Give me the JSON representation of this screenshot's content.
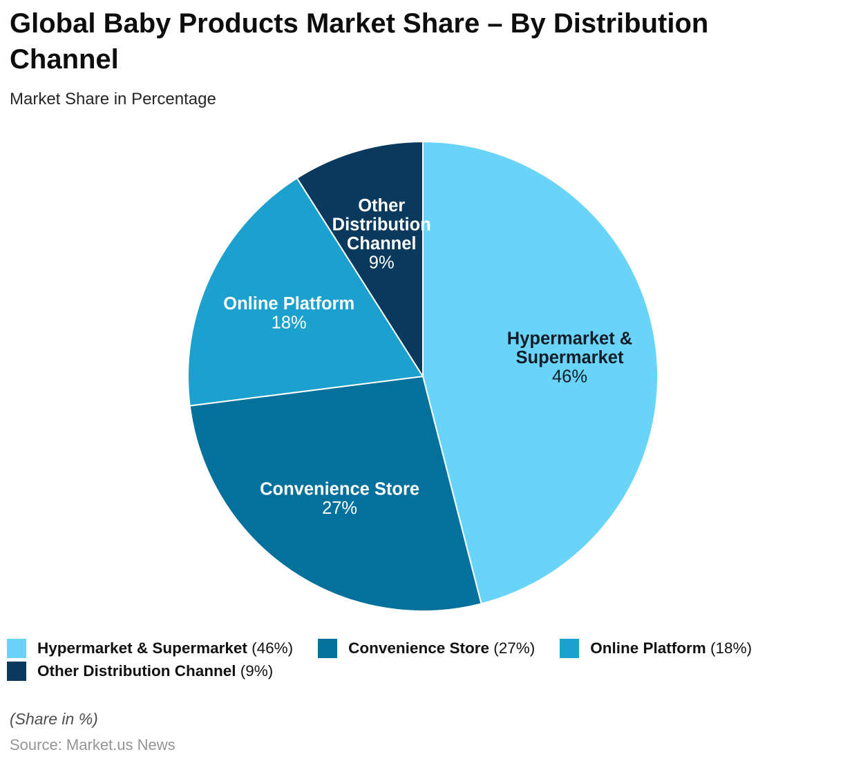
{
  "header": {
    "title": "Global Baby Products Market Share – By Distribution Channel",
    "subtitle": "Market Share in Percentage"
  },
  "chart_data": {
    "type": "pie",
    "title": "Global Baby Products Market Share – By Distribution Channel",
    "subtitle": "Market Share in Percentage",
    "unit": "%",
    "start_angle_deg": 0,
    "direction": "clockwise",
    "legend_position": "bottom",
    "segments": [
      {
        "label": "Hypermarket & Supermarket",
        "value": 46,
        "color": "#69d4f8",
        "text_color": "#101c26",
        "label_lines": [
          "Hypermarket &",
          "Supermarket"
        ]
      },
      {
        "label": "Convenience Store",
        "value": 27,
        "color": "#04719d",
        "text_color": "#ffffff",
        "label_lines": [
          "Convenience Store"
        ]
      },
      {
        "label": "Online Platform",
        "value": 18,
        "color": "#1ca0cd",
        "text_color": "#ffffff",
        "label_lines": [
          "Online Platform"
        ]
      },
      {
        "label": "Other Distribution Channel",
        "value": 9,
        "color": "#09395c",
        "text_color": "#ffffff",
        "label_lines": [
          "Other",
          "Distribution",
          "Channel"
        ]
      }
    ]
  },
  "footer": {
    "note": "(Share in %)",
    "source": "Source: Market.us News"
  }
}
